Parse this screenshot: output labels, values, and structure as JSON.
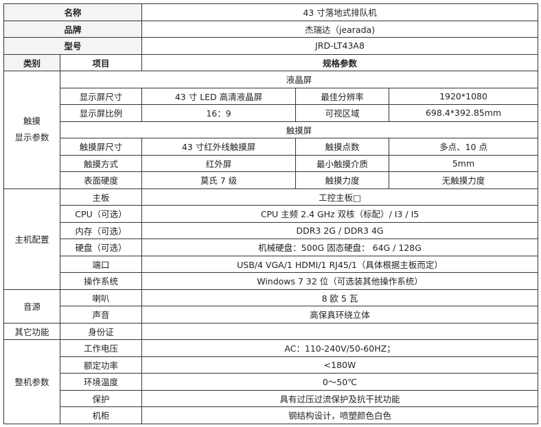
{
  "header": [
    {
      "label": "名称",
      "value": "43 寸落地式排队机"
    },
    {
      "label": "品牌",
      "value": "杰瑞达（jearada)"
    },
    {
      "label": "型号",
      "value": "JRD-LT43A8"
    }
  ],
  "columns": {
    "category": "类别",
    "item": "项目",
    "spec": "规格参数"
  },
  "display": {
    "category": "触摸\n显示参数",
    "lcd_title": "液晶屏",
    "lcd": [
      [
        "显示屏尺寸",
        "43 寸 LED 高清液晶屏",
        "最佳分辨率",
        "1920*1080"
      ],
      [
        "显示屏比例",
        "16：9",
        "可视区域",
        "698.4*392.85mm"
      ]
    ],
    "touch_title": "触摸屏",
    "touch": [
      [
        "触摸屏尺寸",
        "43 寸红外线触摸屏",
        "触摸点数",
        "多点、10 点"
      ],
      [
        "触摸方式",
        "红外屏",
        "最小触摸介质",
        "5mm"
      ],
      [
        "表面硬度",
        "莫氏 7 级",
        "触摸力度",
        "无触摸力度"
      ]
    ]
  },
  "host": {
    "category": "主机配置",
    "rows": [
      [
        "主板",
        "工控主板□"
      ],
      [
        "CPU（可选）",
        "CPU 主频 2.4 GHz 双核（标配）/ I3 /  I5"
      ],
      [
        "内存（可选）",
        "DDR3 2G  /  DDR3 4G"
      ],
      [
        "硬盘（可选）",
        "机械硬盘：500G              固态硬盘： 64G /  128G"
      ],
      [
        "端口",
        "USB/4 VGA/1 HDMI/1 RJ45/1（具体根据主板而定）"
      ],
      [
        "操作系统",
        "Windows 7 32 位（可选装其他操作系统）"
      ]
    ]
  },
  "audio": {
    "category": "音源",
    "rows": [
      [
        "喇叭",
        "8 欧 5 瓦"
      ],
      [
        "声音",
        "高保真环绕立体"
      ]
    ]
  },
  "other": {
    "category": "其它功能",
    "rows": [
      [
        "身份证",
        ""
      ]
    ]
  },
  "machine": {
    "category": "整机参数",
    "rows": [
      [
        "工作电压",
        "AC：110-240V/50-60HZ；"
      ],
      [
        "额定功率",
        "<180W"
      ],
      [
        "环境温度",
        "0～50℃"
      ],
      [
        "保护",
        "具有过压过流保护及抗干扰功能"
      ],
      [
        "机柜",
        "钢结构设计，喷塑颜色白色"
      ]
    ]
  }
}
